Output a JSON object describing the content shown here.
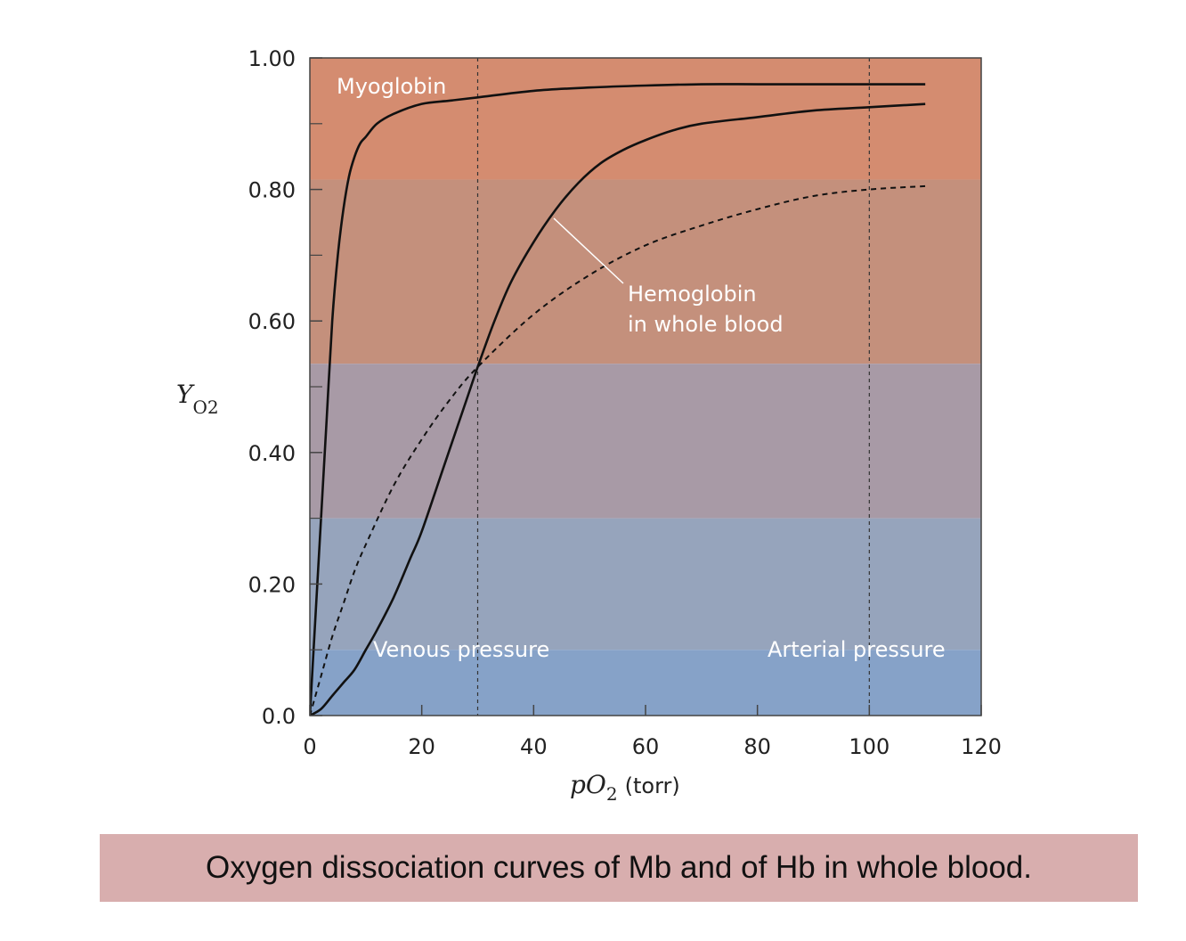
{
  "caption": "Oxygen dissociation curves of Mb and of Hb in whole blood.",
  "chart_data": {
    "type": "line",
    "title": "",
    "xlabel_var": "pO",
    "xlabel_sub": "2",
    "xlabel_unit": "(torr)",
    "ylabel_var": "Y",
    "ylabel_sub": "O2",
    "xlim": [
      0,
      120
    ],
    "ylim": [
      0,
      1
    ],
    "x_ticks": [
      0,
      20,
      40,
      60,
      80,
      100,
      120
    ],
    "x_tick_labels": [
      "0",
      "20",
      "40",
      "60",
      "80",
      "100",
      "120"
    ],
    "y_ticks": [
      0,
      0.2,
      0.4,
      0.6,
      0.8,
      1.0
    ],
    "y_tick_labels": [
      "0.0",
      "0.20",
      "0.40",
      "0.60",
      "0.80",
      "1.00"
    ],
    "reference_lines": [
      {
        "x": 30,
        "label": "Venous pressure"
      },
      {
        "x": 100,
        "label": "Arterial pressure"
      }
    ],
    "series": [
      {
        "name": "Myoglobin",
        "style": "solid",
        "x": [
          0,
          1,
          2,
          3,
          4,
          5,
          6,
          7,
          8,
          9,
          10,
          12,
          15,
          20,
          25,
          30,
          40,
          50,
          60,
          70,
          80,
          90,
          100,
          110
        ],
        "y": [
          0,
          0.15,
          0.3,
          0.45,
          0.6,
          0.7,
          0.77,
          0.82,
          0.85,
          0.87,
          0.88,
          0.9,
          0.915,
          0.93,
          0.935,
          0.94,
          0.95,
          0.955,
          0.958,
          0.96,
          0.96,
          0.96,
          0.96,
          0.96
        ]
      },
      {
        "name": "Hemoglobin in whole blood",
        "style": "solid",
        "x": [
          0,
          2,
          4,
          6,
          8,
          10,
          12,
          15,
          18,
          20,
          24,
          28,
          30,
          33,
          36,
          40,
          44,
          48,
          52,
          56,
          60,
          65,
          70,
          80,
          90,
          100,
          110
        ],
        "y": [
          0,
          0.01,
          0.03,
          0.05,
          0.07,
          0.1,
          0.13,
          0.18,
          0.24,
          0.28,
          0.38,
          0.48,
          0.53,
          0.6,
          0.66,
          0.72,
          0.77,
          0.81,
          0.84,
          0.86,
          0.875,
          0.89,
          0.9,
          0.91,
          0.92,
          0.925,
          0.93
        ]
      },
      {
        "name": "dashed curve",
        "style": "dashed",
        "x": [
          0,
          2,
          4,
          6,
          8,
          10,
          15,
          20,
          25,
          30,
          40,
          50,
          60,
          70,
          80,
          90,
          100,
          110
        ],
        "y": [
          0,
          0.06,
          0.12,
          0.17,
          0.22,
          0.26,
          0.35,
          0.42,
          0.48,
          0.53,
          0.61,
          0.67,
          0.715,
          0.745,
          0.77,
          0.79,
          0.8,
          0.805
        ]
      }
    ],
    "annotations": [
      {
        "text": "Myoglobin"
      },
      {
        "text_lines": [
          "Hemoglobin",
          "in whole blood"
        ]
      }
    ],
    "band_colors": [
      "#d48c70",
      "#c4907c",
      "#a89aa6",
      "#96a4bc",
      "#86a2c8",
      "#7da0cc"
    ]
  }
}
